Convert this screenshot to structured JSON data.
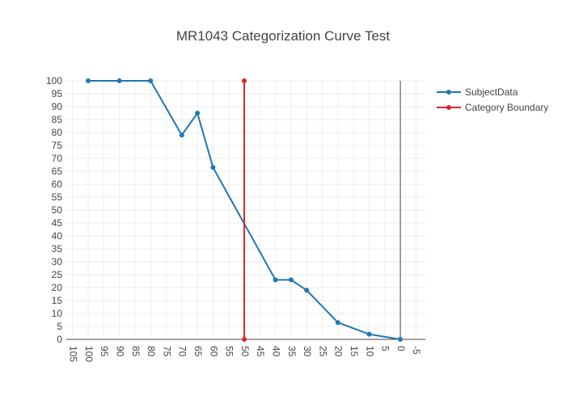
{
  "chart_data": {
    "type": "line",
    "title": "MR1043 Categorization Curve Test",
    "xlabel": "",
    "ylabel": "",
    "x_reversed": true,
    "xlim": [
      107,
      -8
    ],
    "ylim": [
      0,
      100
    ],
    "x_ticks": [
      105,
      100,
      95,
      90,
      85,
      80,
      75,
      70,
      65,
      60,
      55,
      50,
      45,
      40,
      35,
      30,
      25,
      20,
      15,
      10,
      5,
      0,
      -5
    ],
    "y_ticks": [
      0,
      5,
      10,
      15,
      20,
      25,
      30,
      35,
      40,
      45,
      50,
      55,
      60,
      65,
      70,
      75,
      80,
      85,
      90,
      95,
      100
    ],
    "grid": true,
    "legend_position": "top-right",
    "series": [
      {
        "name": "SubjectData",
        "color": "#1f77b4",
        "x": [
          100,
          90,
          80,
          70,
          65,
          60,
          40,
          35,
          30,
          20,
          10,
          0
        ],
        "y": [
          100,
          100,
          100,
          79,
          87.5,
          66.5,
          23,
          23,
          19,
          6.5,
          2,
          0
        ]
      },
      {
        "name": "Category Boundary",
        "color": "#d62728",
        "x": [
          50,
          50
        ],
        "y": [
          0,
          100
        ]
      }
    ],
    "zero_line_color": "#444444"
  }
}
